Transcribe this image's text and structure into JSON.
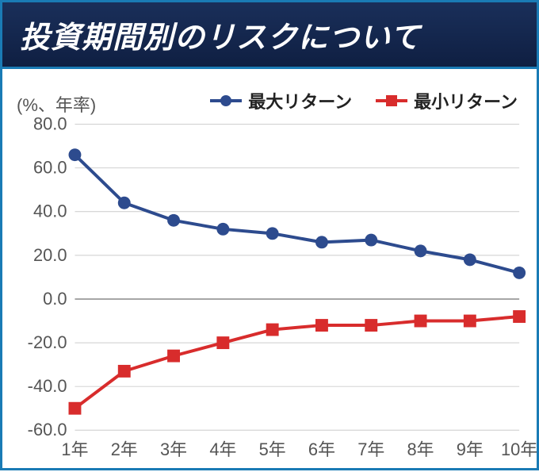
{
  "title": "投資期間別のリスクについて",
  "y_axis_unit_label": "(%、年率)",
  "chart": {
    "type": "line",
    "categories": [
      "1年",
      "2年",
      "3年",
      "4年",
      "5年",
      "6年",
      "7年",
      "8年",
      "9年",
      "10年"
    ],
    "ylim": [
      -60,
      80
    ],
    "ytick_step": 20,
    "yticks": [
      -60,
      -40,
      -20,
      0,
      20,
      40,
      60,
      80
    ],
    "ytick_labels": [
      "-60.0",
      "-40.0",
      "-20.0",
      "0.0",
      "20.0",
      "40.0",
      "60.0",
      "80.0"
    ],
    "zero_line_color": "#888888",
    "gridline_color": "#cccccc",
    "axis_color": "#888888",
    "background_color": "#ffffff",
    "tick_label_fontsize": 22,
    "tick_label_color": "#555555",
    "line_width": 4,
    "marker_size": 8,
    "series": [
      {
        "name": "最大リターン",
        "color": "#2d4b8e",
        "marker_shape": "circle",
        "values": [
          66,
          44,
          36,
          32,
          30,
          26,
          27,
          22,
          18,
          12
        ]
      },
      {
        "name": "最小リターン",
        "color": "#d82c2c",
        "marker_shape": "square",
        "values": [
          -50,
          -33,
          -26,
          -20,
          -14,
          -12,
          -12,
          -10,
          -10,
          -8
        ]
      }
    ]
  },
  "frame_border_color": "#1a7bb5",
  "title_bg_gradient": [
    "#1a2f5a",
    "#0f1f42"
  ],
  "title_text_color": "#ffffff",
  "title_fontsize": 38
}
